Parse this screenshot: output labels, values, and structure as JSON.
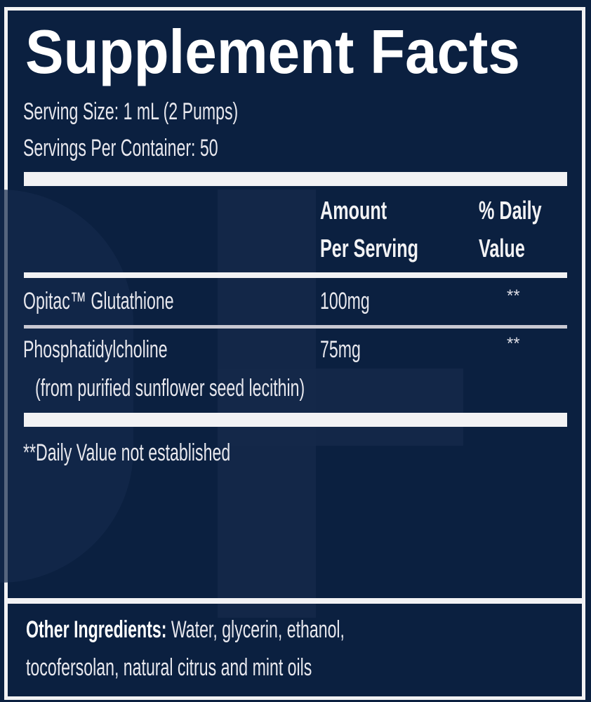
{
  "title": "Supplement Facts",
  "serving_size": "Serving Size: 1 mL (2 Pumps)",
  "servings_per_container": "Servings Per Container: 50",
  "columns": {
    "amount_line1": "Amount",
    "amount_line2": "Per Serving",
    "dv_line1": "% Daily",
    "dv_line2": "Value"
  },
  "rows": [
    {
      "name": "Opitac™ Glutathione",
      "amount": "100mg",
      "dv": "**"
    },
    {
      "name": "Phosphatidylcholine",
      "sub": "(from purified sunflower seed lecithin)",
      "amount": "75mg",
      "dv": "**"
    }
  ],
  "footnote": "**Daily Value not established",
  "other_ingredients": {
    "label": "Other Ingredients:",
    "line1": " Water, glycerin, ethanol,",
    "line2": "tocofersolan,  natural citrus and mint oils"
  },
  "colors": {
    "background": "#0b2040",
    "text": "#ffffff"
  }
}
